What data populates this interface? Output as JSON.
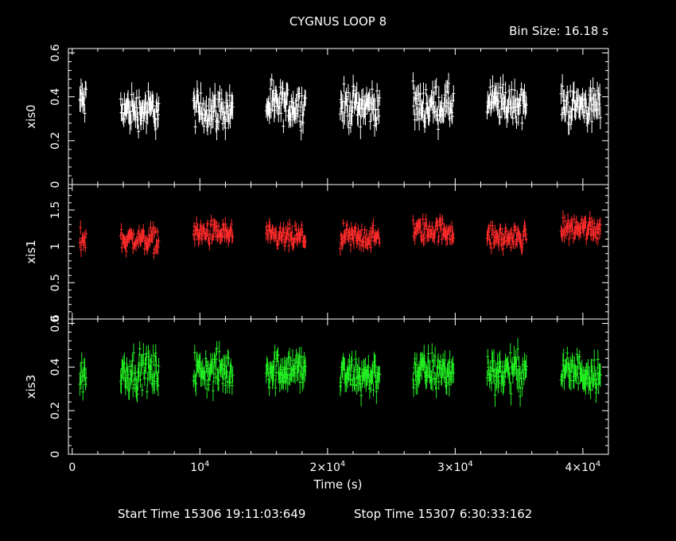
{
  "title": "CYGNUS LOOP 8",
  "bin_size": "Bin Size: 16.18 s",
  "footer": {
    "start": "Start Time 15306 19:11:03:649",
    "stop": "Stop Time 15307  6:30:33:162"
  },
  "colors": {
    "xis0": "#ffffff",
    "xis1": "#ff2a2a",
    "xis3": "#22ee22",
    "axes": "#ffffff",
    "background": "#000000"
  },
  "chart_data": {
    "type": "scatter",
    "title": "CYGNUS LOOP 8",
    "xlabel": "Time (s)",
    "xlim": [
      -300,
      42000
    ],
    "x_ticks": [
      {
        "value": 0,
        "mant": "0",
        "exp": ""
      },
      {
        "value": 10000,
        "mant": "10",
        "exp": "4"
      },
      {
        "value": 20000,
        "mant": "2×10",
        "exp": "4"
      },
      {
        "value": 30000,
        "mant": "3×10",
        "exp": "4"
      },
      {
        "value": 40000,
        "mant": "4×10",
        "exp": "4"
      }
    ],
    "segments": [
      [
        600,
        1100
      ],
      [
        3800,
        6800
      ],
      [
        9500,
        12600
      ],
      [
        15200,
        18300
      ],
      [
        21000,
        24100
      ],
      [
        26700,
        29900
      ],
      [
        32500,
        35600
      ],
      [
        38300,
        41400
      ]
    ],
    "panels": [
      {
        "name": "xis0",
        "color": "#ffffff",
        "ylim": [
          0,
          0.62
        ],
        "yticks": [
          0,
          0.2,
          0.4,
          0.6
        ],
        "mean": [
          0.38,
          0.34,
          0.34,
          0.36,
          0.36,
          0.36,
          0.37,
          0.36
        ],
        "spread": 0.08
      },
      {
        "name": "xis1",
        "color": "#ff2a2a",
        "ylim": [
          0,
          1.85
        ],
        "yticks": [
          0,
          0.5,
          1,
          1.5
        ],
        "mean": [
          1.1,
          1.1,
          1.18,
          1.12,
          1.12,
          1.22,
          1.12,
          1.25
        ],
        "spread": 0.15
      },
      {
        "name": "xis3",
        "color": "#22ee22",
        "ylim": [
          0,
          0.62
        ],
        "yticks": [
          0,
          0.2,
          0.4,
          0.6
        ],
        "mean": [
          0.36,
          0.38,
          0.38,
          0.39,
          0.36,
          0.38,
          0.38,
          0.38
        ],
        "spread": 0.08
      }
    ]
  }
}
